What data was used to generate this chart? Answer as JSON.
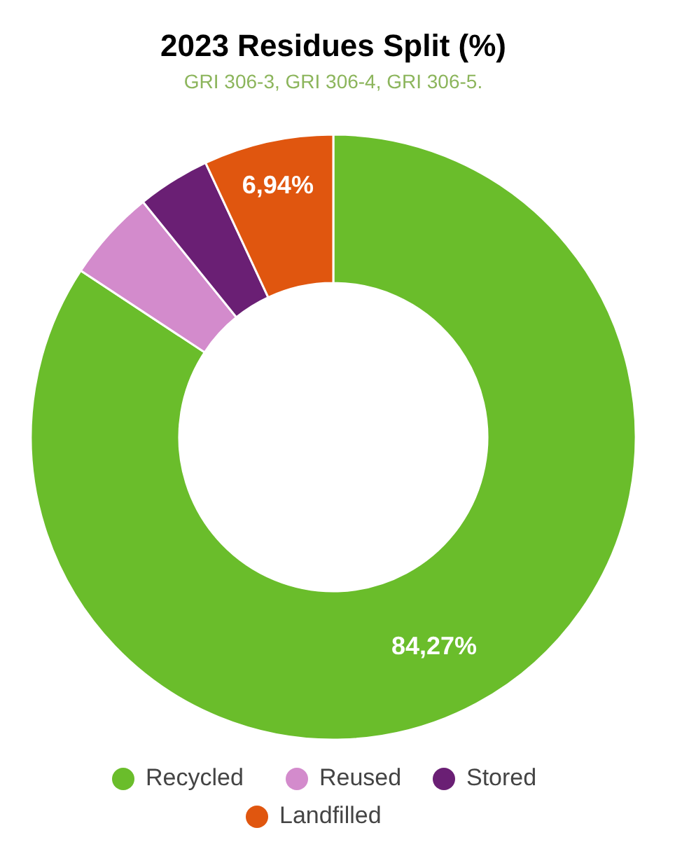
{
  "chart_data": {
    "type": "donut",
    "title": "2023 Residues Split (%)",
    "subtitle": "GRI 306-3, GRI 306-4, GRI 306-5.",
    "categories": [
      "Recycled",
      "Reused",
      "Stored",
      "Landfilled"
    ],
    "values": [
      84.27,
      4.9,
      3.89,
      6.94
    ],
    "colors": [
      "#6abd2b",
      "#d38bcc",
      "#6a1f74",
      "#e0560f"
    ],
    "value_labels": [
      "84,27%",
      null,
      null,
      "6,94%"
    ],
    "legend": "bottom"
  }
}
